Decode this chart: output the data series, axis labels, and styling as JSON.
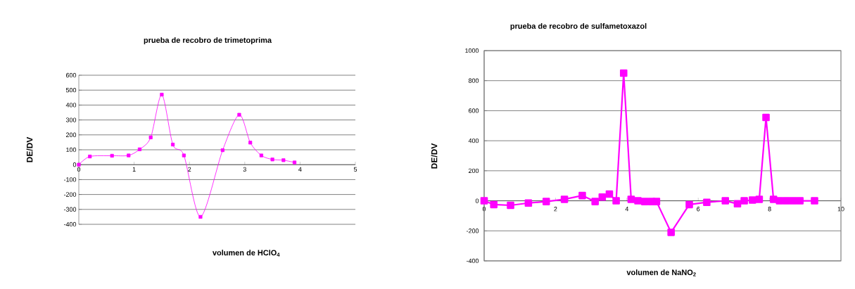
{
  "chart_data": [
    {
      "type": "line",
      "title": "prueba de recobro de trimetoprima",
      "xlabel": "volumen de HClO$_{4}$",
      "ylabel": "DE/DV",
      "x": [
        0,
        0.2,
        0.6,
        0.9,
        1.1,
        1.3,
        1.5,
        1.7,
        1.9,
        2.2,
        2.6,
        2.9,
        3.1,
        3.3,
        3.5,
        3.7,
        3.9
      ],
      "series": [
        {
          "color": "#ff00ff",
          "values": [
            0,
            55,
            60,
            62,
            103,
            183,
            470,
            135,
            62,
            -350,
            97,
            335,
            148,
            62,
            35,
            30,
            15
          ]
        }
      ],
      "xlim": [
        0,
        5
      ],
      "xticks": [
        0,
        1,
        2,
        3,
        4,
        5
      ],
      "ylim": [
        -400,
        600
      ],
      "yticks": [
        -400,
        -300,
        -200,
        -100,
        0,
        100,
        200,
        300,
        400,
        500,
        600
      ],
      "grid": "y",
      "marker": "square",
      "line_style": "solid"
    },
    {
      "type": "line",
      "title": "prueba de recobro de sulfametoxazol",
      "xlabel": "volumen de NaNO$_{2}$",
      "ylabel": "DE/DV",
      "x": [
        0,
        0.27,
        0.74,
        1.24,
        1.74,
        2.25,
        2.75,
        3.11,
        3.31,
        3.51,
        3.7,
        3.91,
        4.12,
        4.31,
        4.5,
        4.69,
        4.83,
        5.24,
        5.75,
        6.24,
        6.76,
        7.1,
        7.29,
        7.52,
        7.71,
        7.9,
        8.11,
        8.28,
        8.47,
        8.66,
        8.85,
        9.26
      ],
      "series": [
        {
          "color": "#ff00ff",
          "values": [
            0,
            -25,
            -30,
            -15,
            -5,
            10,
            35,
            -5,
            25,
            45,
            0,
            850,
            10,
            0,
            -5,
            -5,
            -5,
            -210,
            -25,
            -10,
            0,
            -20,
            0,
            5,
            10,
            555,
            10,
            0,
            0,
            0,
            0,
            0
          ]
        }
      ],
      "xlim": [
        0,
        10
      ],
      "xticks": [
        0,
        2,
        4,
        6,
        8,
        10
      ],
      "ylim": [
        -400,
        1000
      ],
      "yticks": [
        -400,
        -200,
        0,
        200,
        400,
        600,
        800,
        1000
      ],
      "grid": "y",
      "marker": "square",
      "line_style": "solid"
    }
  ]
}
